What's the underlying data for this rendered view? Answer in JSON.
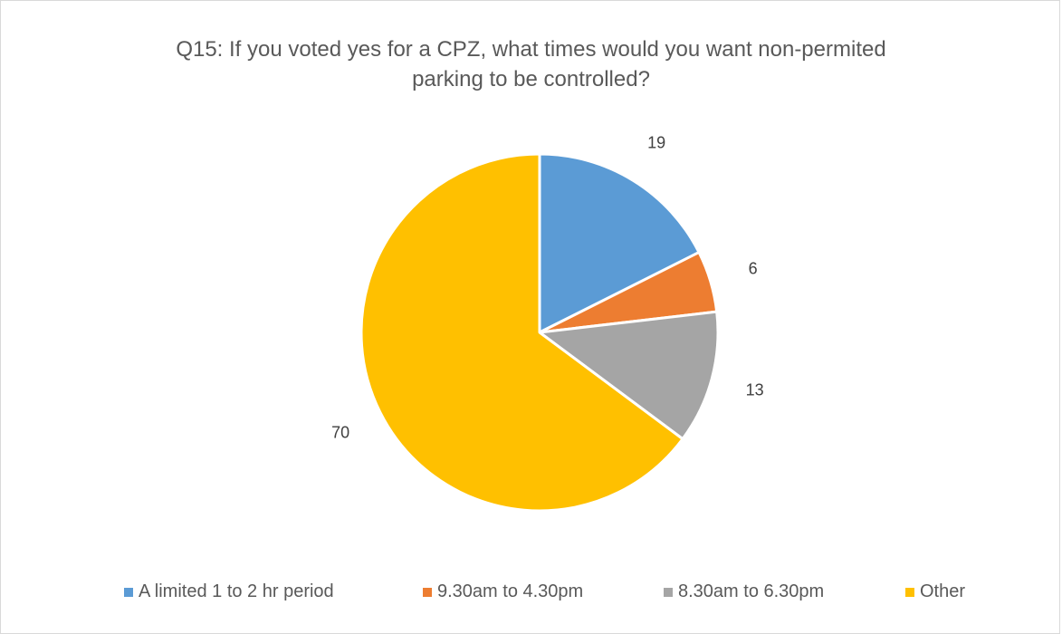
{
  "chart_data": {
    "type": "pie",
    "title_lines": [
      "Q15: If you voted yes for a CPZ, what times would you want non-permited",
      "parking to be controlled?"
    ],
    "slices": [
      {
        "label": "A limited 1 to 2 hr period",
        "value": 19,
        "color": "#5b9bd5"
      },
      {
        "label": "9.30am to 4.30pm",
        "value": 6,
        "color": "#ed7d31"
      },
      {
        "label": "8.30am to 6.30pm",
        "value": 13,
        "color": "#a5a5a5"
      },
      {
        "label": "Other",
        "value": 70,
        "color": "#ffc000"
      }
    ],
    "start_angle": "12 o'clock, clockwise",
    "legend_position": "bottom",
    "data_labels": "outside end"
  }
}
